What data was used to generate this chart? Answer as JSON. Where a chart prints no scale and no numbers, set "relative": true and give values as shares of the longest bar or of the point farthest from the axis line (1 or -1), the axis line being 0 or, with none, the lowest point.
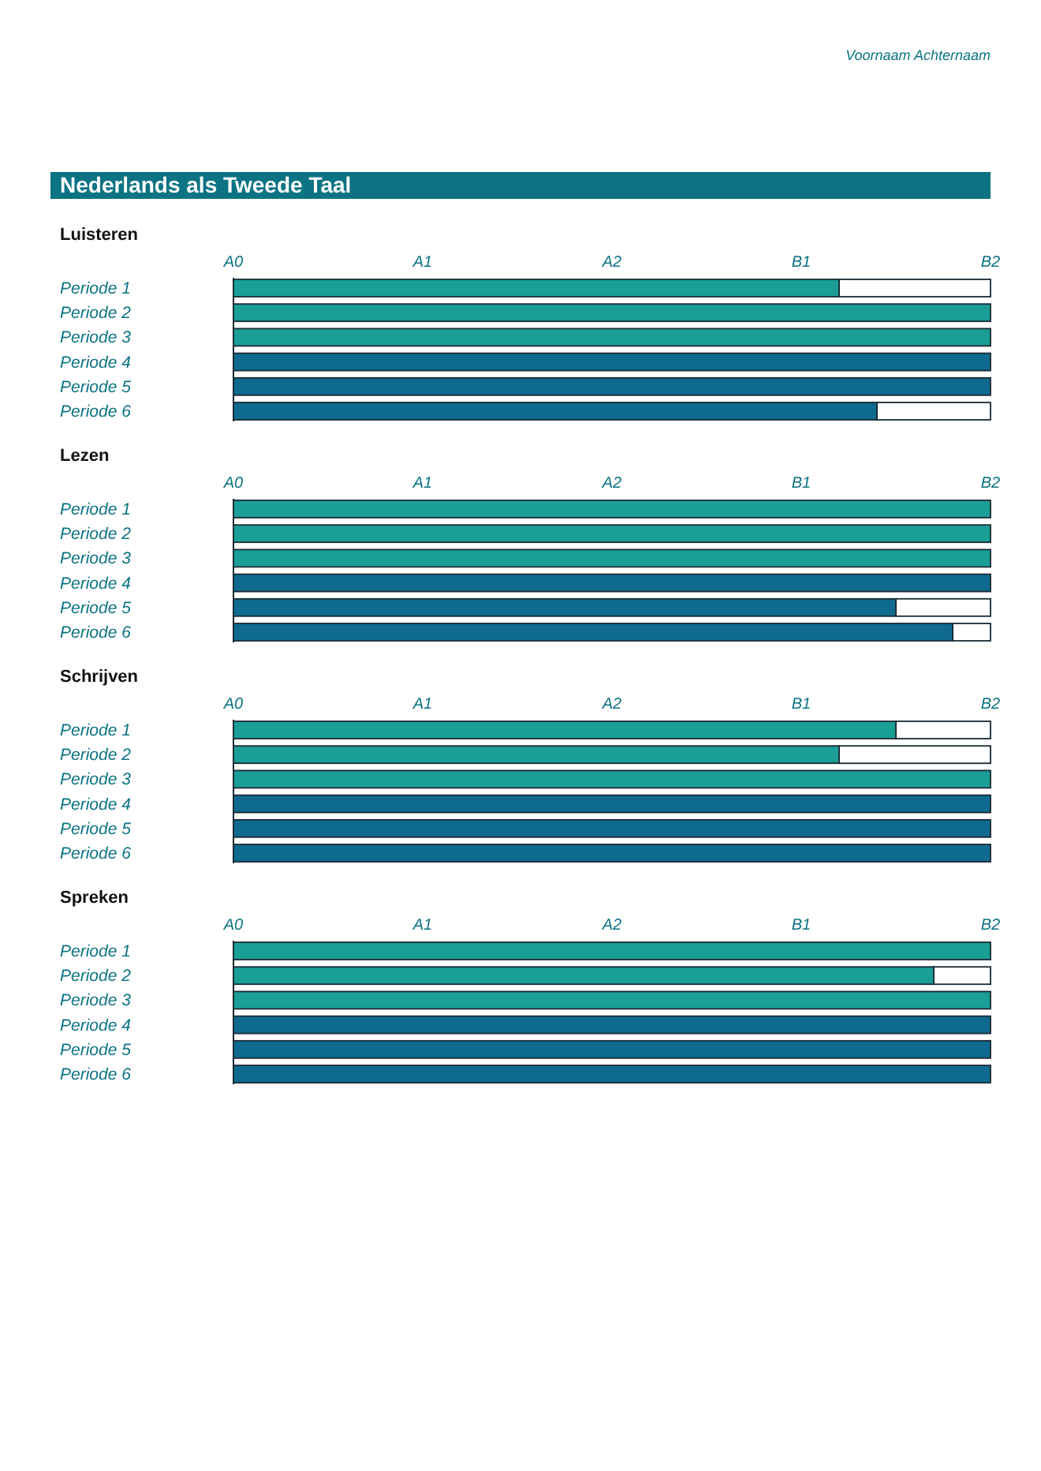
{
  "chart_data": [
    {
      "type": "other",
      "title": "Nederlands als Tweede Taal",
      "annotations": [
        "Voornaam Achternaam"
      ]
    },
    {
      "type": "bar",
      "orientation": "horizontal",
      "relative": true,
      "title": "Luisteren",
      "categories": [
        "Periode 1",
        "Periode 2",
        "Periode 3",
        "Periode 4",
        "Periode 5",
        "Periode 6"
      ],
      "values": [
        0.8,
        1,
        1,
        1,
        1,
        0.85
      ],
      "colors": [
        "#1a9e96",
        "#1a9e96",
        "#1a9e96",
        "#0e6a8f",
        "#0e6a8f",
        "#0e6a8f"
      ],
      "annotations": [
        "A0",
        "A1",
        "A2",
        "B1",
        "B2"
      ]
    },
    {
      "type": "bar",
      "orientation": "horizontal",
      "relative": true,
      "title": "Lezen",
      "categories": [
        "Periode 1",
        "Periode 2",
        "Periode 3",
        "Periode 4",
        "Periode 5",
        "Periode 6"
      ],
      "values": [
        1,
        1,
        1,
        1,
        0.875,
        0.95
      ],
      "colors": [
        "#1a9e96",
        "#1a9e96",
        "#1a9e96",
        "#0e6a8f",
        "#0e6a8f",
        "#0e6a8f"
      ],
      "annotations": [
        "A0",
        "A1",
        "A2",
        "B1",
        "B2"
      ]
    },
    {
      "type": "bar",
      "orientation": "horizontal",
      "relative": true,
      "title": "Schrijven",
      "categories": [
        "Periode 1",
        "Periode 2",
        "Periode 3",
        "Periode 4",
        "Periode 5",
        "Periode 6"
      ],
      "values": [
        0.875,
        0.8,
        1,
        1,
        1,
        1
      ],
      "colors": [
        "#1a9e96",
        "#1a9e96",
        "#1a9e96",
        "#0e6a8f",
        "#0e6a8f",
        "#0e6a8f"
      ],
      "annotations": [
        "A0",
        "A1",
        "A2",
        "B1",
        "B2"
      ]
    },
    {
      "type": "bar",
      "orientation": "horizontal",
      "relative": true,
      "title": "Spreken",
      "categories": [
        "Periode 1",
        "Periode 2",
        "Periode 3",
        "Periode 4",
        "Periode 5",
        "Periode 6"
      ],
      "values": [
        1,
        0.925,
        1,
        1,
        1,
        1
      ],
      "colors": [
        "#1a9e96",
        "#1a9e96",
        "#1a9e96",
        "#0e6a8f",
        "#0e6a8f",
        "#0e6a8f"
      ],
      "annotations": [
        "A0",
        "A1",
        "A2",
        "B1",
        "B2"
      ]
    }
  ]
}
